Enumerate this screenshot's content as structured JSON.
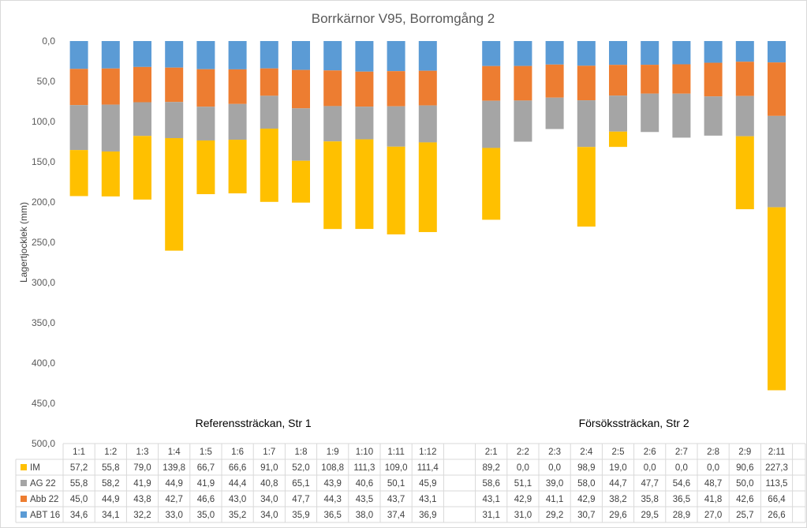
{
  "chart_data": {
    "type": "bar",
    "stacked": true,
    "title": "Borrkärnor V95, Borromgång 2",
    "ylabel": "Lagertjocklek (mm)",
    "xlabel": "",
    "ylim": [
      0,
      500
    ],
    "y_inverted": true,
    "y_ticks": [
      "0,0",
      "50,0",
      "100,0",
      "150,0",
      "200,0",
      "250,0",
      "300,0",
      "350,0",
      "400,0",
      "450,0",
      "500,0"
    ],
    "grid": false,
    "legend": "data-table",
    "groups": [
      {
        "label": "Referenssträckan, Str 1",
        "categories": [
          "1:1",
          "1:2",
          "1:3",
          "1:4",
          "1:5",
          "1:6",
          "1:7",
          "1:8",
          "1:9",
          "1:10",
          "1:11",
          "1:12"
        ],
        "series": [
          {
            "name": "IM",
            "color": "#ffc000",
            "values": [
              "57,2",
              "55,8",
              "79,0",
              "139,8",
              "66,7",
              "66,6",
              "91,0",
              "52,0",
              "108,8",
              "111,3",
              "109,0",
              "111,4"
            ]
          },
          {
            "name": "AG 22",
            "color": "#a5a5a5",
            "values": [
              "55,8",
              "58,2",
              "41,9",
              "44,9",
              "41,9",
              "44,4",
              "40,8",
              "65,1",
              "43,9",
              "40,6",
              "50,1",
              "45,9"
            ]
          },
          {
            "name": "Abb 22",
            "color": "#ed7d31",
            "values": [
              "45,0",
              "44,9",
              "43,8",
              "42,7",
              "46,6",
              "43,0",
              "34,0",
              "47,7",
              "44,3",
              "43,5",
              "43,7",
              "43,1"
            ]
          },
          {
            "name": "ABT 16",
            "color": "#5b9bd5",
            "values": [
              "34,6",
              "34,1",
              "32,2",
              "33,0",
              "35,0",
              "35,2",
              "34,0",
              "35,9",
              "36,5",
              "38,0",
              "37,4",
              "36,9"
            ]
          }
        ]
      },
      {
        "label": "Försökssträckan, Str 2",
        "categories": [
          "2:1",
          "2:2",
          "2:3",
          "2:4",
          "2:5",
          "2:6",
          "2:7",
          "2:8",
          "2:9",
          "2:11"
        ],
        "series": [
          {
            "name": "IM",
            "color": "#ffc000",
            "values": [
              "89,2",
              "0,0",
              "0,0",
              "98,9",
              "19,0",
              "0,0",
              "0,0",
              "0,0",
              "90,6",
              "227,3"
            ]
          },
          {
            "name": "AG 22",
            "color": "#a5a5a5",
            "values": [
              "58,6",
              "51,1",
              "39,0",
              "58,0",
              "44,7",
              "47,7",
              "54,6",
              "48,7",
              "50,0",
              "113,5"
            ]
          },
          {
            "name": "Abb 22",
            "color": "#ed7d31",
            "values": [
              "43,1",
              "42,9",
              "41,1",
              "42,9",
              "38,2",
              "35,8",
              "36,5",
              "41,8",
              "42,6",
              "66,4"
            ]
          },
          {
            "name": "ABT 16",
            "color": "#5b9bd5",
            "values": [
              "31,1",
              "31,0",
              "29,2",
              "30,7",
              "29,6",
              "29,5",
              "28,9",
              "27,0",
              "25,7",
              "26,6"
            ]
          }
        ]
      }
    ]
  }
}
